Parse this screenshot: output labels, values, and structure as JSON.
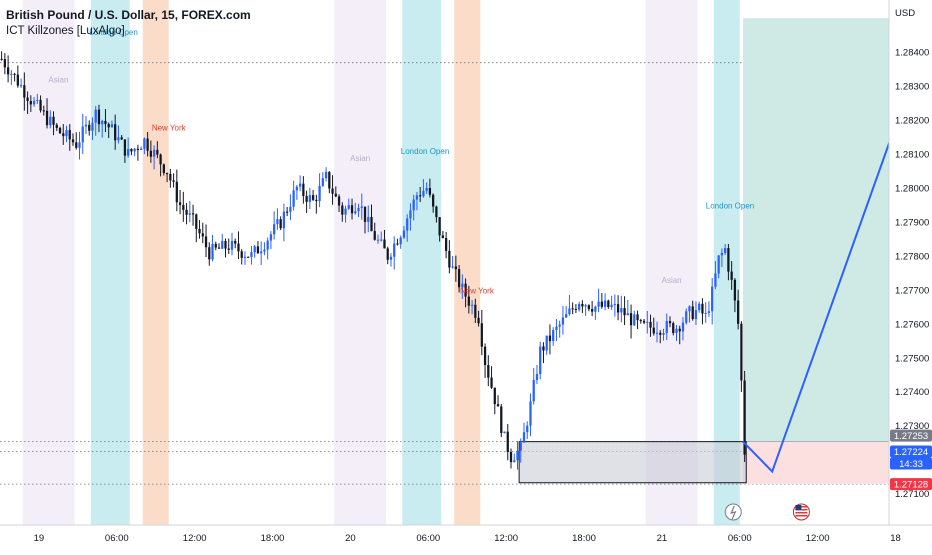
{
  "header": {
    "symbol_line": "British Pound / U.S. Dollar, 15, FOREX.com",
    "indicator_line": "ICT Killzones [LuxAlgo]"
  },
  "axis": {
    "currency_label": "USD"
  },
  "chart_data": {
    "type": "candlestick",
    "ylim": [
      1.2709,
      1.2853
    ],
    "xlim": [
      -7.0,
      222.0
    ],
    "y_ticks": [
      "1.28400",
      "1.28300",
      "1.28200",
      "1.28100",
      "1.28000",
      "1.27900",
      "1.27800",
      "1.27700",
      "1.27600",
      "1.27500",
      "1.27400",
      "1.27300",
      "1.27100"
    ],
    "y_tick_values": [
      1.284,
      1.283,
      1.282,
      1.281,
      1.28,
      1.279,
      1.278,
      1.277,
      1.276,
      1.275,
      1.274,
      1.273,
      1.271
    ],
    "x_ticks": [
      {
        "label": "19",
        "bar": 5
      },
      {
        "label": "06:00",
        "bar": 29
      },
      {
        "label": "12:00",
        "bar": 53
      },
      {
        "label": "18:00",
        "bar": 77
      },
      {
        "label": "20",
        "bar": 101
      },
      {
        "label": "06:00",
        "bar": 125
      },
      {
        "label": "12:00",
        "bar": 149
      },
      {
        "label": "18:00",
        "bar": 173
      },
      {
        "label": "21",
        "bar": 197
      },
      {
        "label": "06:00",
        "bar": 221
      },
      {
        "label": "12:00",
        "bar": 245
      },
      {
        "label": "18",
        "bar": 269
      }
    ],
    "killzones": [
      {
        "name": "Asian",
        "start": 0,
        "end": 16,
        "color": "#f4eef9",
        "label_color": "#b8adc9"
      },
      {
        "name": "London Open",
        "start": 21,
        "end": 33,
        "color": "#c8ecef",
        "label_color": "#2196c8"
      },
      {
        "name": "New York",
        "start": 37,
        "end": 45,
        "color": "#fbdcc9",
        "label_color": "#e0402e"
      },
      {
        "name": "Asian",
        "start": 96,
        "end": 112,
        "color": "#f4eef9",
        "label_color": "#b8adc9"
      },
      {
        "name": "London Open",
        "start": 117,
        "end": 129,
        "color": "#c8ecef",
        "label_color": "#2196c8"
      },
      {
        "name": "New York",
        "start": 133,
        "end": 141,
        "color": "#fbdcc9",
        "label_color": "#e0402e"
      },
      {
        "name": "Asian",
        "start": 192,
        "end": 208,
        "color": "#f4eef9",
        "label_color": "#b8adc9"
      },
      {
        "name": "London Open",
        "start": 213,
        "end": 221,
        "color": "#c8ecef",
        "label_color": "#2196c8"
      }
    ],
    "killzone_labels": [
      {
        "text": "Asian",
        "bar": 11,
        "price": 1.2831
      },
      {
        "text": "London Open",
        "bar": 28,
        "price": 1.2845
      },
      {
        "text": "New York",
        "bar": 45,
        "price": 1.2817
      },
      {
        "text": "Asian",
        "bar": 104,
        "price": 1.2808
      },
      {
        "text": "London Open",
        "bar": 124,
        "price": 1.281
      },
      {
        "text": "New York",
        "bar": 140,
        "price": 1.2769
      },
      {
        "text": "Asian",
        "bar": 200,
        "price": 1.2772
      },
      {
        "text": "London Open",
        "bar": 218,
        "price": 1.2794
      }
    ],
    "trend_points": [
      {
        "bar": -7,
        "price": 1.2838
      },
      {
        "bar": 2,
        "price": 1.2826
      },
      {
        "bar": 10,
        "price": 1.2817
      },
      {
        "bar": 16,
        "price": 1.2813
      },
      {
        "bar": 22,
        "price": 1.2822
      },
      {
        "bar": 27,
        "price": 1.2817
      },
      {
        "bar": 32,
        "price": 1.281
      },
      {
        "bar": 37,
        "price": 1.2814
      },
      {
        "bar": 44,
        "price": 1.2805
      },
      {
        "bar": 48,
        "price": 1.2795
      },
      {
        "bar": 52,
        "price": 1.279
      },
      {
        "bar": 57,
        "price": 1.2781
      },
      {
        "bar": 63,
        "price": 1.2783
      },
      {
        "bar": 70,
        "price": 1.278
      },
      {
        "bar": 74,
        "price": 1.2784
      },
      {
        "bar": 79,
        "price": 1.279
      },
      {
        "bar": 84,
        "price": 1.28
      },
      {
        "bar": 89,
        "price": 1.2796
      },
      {
        "bar": 93,
        "price": 1.2803
      },
      {
        "bar": 98,
        "price": 1.2793
      },
      {
        "bar": 103,
        "price": 1.2796
      },
      {
        "bar": 107,
        "price": 1.2787
      },
      {
        "bar": 112,
        "price": 1.278
      },
      {
        "bar": 116,
        "price": 1.2787
      },
      {
        "bar": 121,
        "price": 1.2798
      },
      {
        "bar": 124,
        "price": 1.28
      },
      {
        "bar": 128,
        "price": 1.2787
      },
      {
        "bar": 132,
        "price": 1.2776
      },
      {
        "bar": 135,
        "price": 1.277
      },
      {
        "bar": 140,
        "price": 1.2762
      },
      {
        "bar": 142,
        "price": 1.2749
      },
      {
        "bar": 145,
        "price": 1.2738
      },
      {
        "bar": 148,
        "price": 1.2726
      },
      {
        "bar": 150,
        "price": 1.2721
      },
      {
        "bar": 153,
        "price": 1.2723
      },
      {
        "bar": 156,
        "price": 1.2736
      },
      {
        "bar": 159,
        "price": 1.2752
      },
      {
        "bar": 163,
        "price": 1.2757
      },
      {
        "bar": 167,
        "price": 1.2762
      },
      {
        "bar": 171,
        "price": 1.2767
      },
      {
        "bar": 176,
        "price": 1.2765
      },
      {
        "bar": 181,
        "price": 1.2765
      },
      {
        "bar": 185,
        "price": 1.2763
      },
      {
        "bar": 190,
        "price": 1.2759
      },
      {
        "bar": 196,
        "price": 1.2759
      },
      {
        "bar": 201,
        "price": 1.2759
      },
      {
        "bar": 205,
        "price": 1.2763
      },
      {
        "bar": 208,
        "price": 1.2764
      },
      {
        "bar": 210,
        "price": 1.2762
      },
      {
        "bar": 212,
        "price": 1.2769
      },
      {
        "bar": 214,
        "price": 1.2779
      },
      {
        "bar": 216,
        "price": 1.2782
      },
      {
        "bar": 218,
        "price": 1.2772
      },
      {
        "bar": 220,
        "price": 1.276
      },
      {
        "bar": 221,
        "price": 1.2743
      },
      {
        "bar": 222,
        "price": 1.27224
      }
    ],
    "order_block": {
      "bar_start": 153,
      "bar_end": 223,
      "price_top": 1.27253,
      "price_bottom": 1.27132
    },
    "position": {
      "entry": 1.27253,
      "target": 1.285,
      "stop": 1.27128,
      "bar_start": 222,
      "bar_end": 272
    },
    "projection": [
      {
        "bar": 222,
        "price": 1.27253
      },
      {
        "bar": 231,
        "price": 1.27165
      },
      {
        "bar": 280,
        "price": 1.2848
      }
    ],
    "dotted_levels": [
      1.28369,
      1.27253,
      1.27224,
      1.27128
    ],
    "price_labels": [
      {
        "text": "1.27253",
        "price": 1.27253,
        "color": "#787b86"
      },
      {
        "text": "1.27224",
        "price": 1.27224,
        "color": "#2962ff"
      },
      {
        "text": "14:33",
        "price": 1.27224,
        "color": "#2962ff"
      },
      {
        "text": "1.27128",
        "price": 1.27128,
        "color": "#f23645"
      }
    ],
    "colors": {
      "up": "#2962ff",
      "down": "#131722",
      "projection": "#2962ff",
      "target_zone": "#cfe9e4",
      "stop_zone": "#fce0e0",
      "order_block": "#c9cdd6"
    }
  },
  "event_icons": [
    {
      "name": "lightning-event-icon",
      "bar": 219
    },
    {
      "name": "us-flag-event-icon",
      "bar": 240
    }
  ]
}
